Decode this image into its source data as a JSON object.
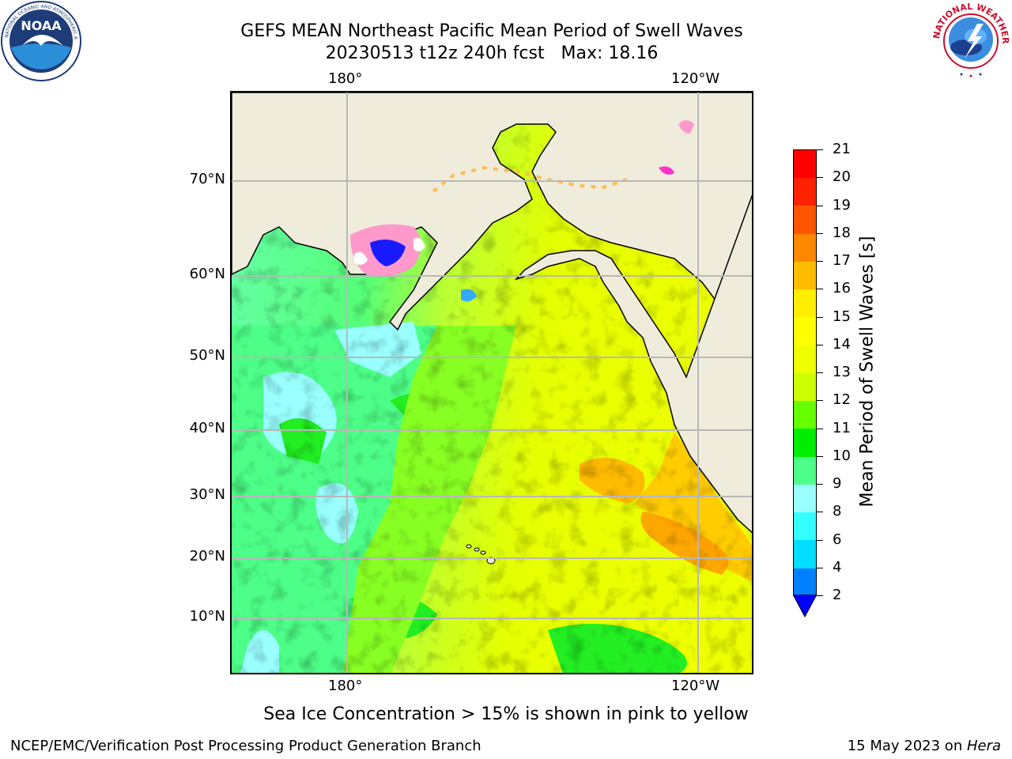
{
  "title": {
    "line1": "GEFS MEAN Northeast Pacific Mean Period of Swell Waves",
    "line2": "20230513 t12z 240h fcst   Max: 18.16"
  },
  "logos": {
    "left": {
      "icon": "noaa-logo",
      "text": "NOAA",
      "ring_text": "NATIONAL OCEANIC AND ATMOSPHERIC ADMINISTRATION · U.S. DEPARTMENT OF COMMERCE"
    },
    "right": {
      "icon": "nws-logo",
      "ring_text": "NATIONAL WEATHER SERVICE"
    }
  },
  "map": {
    "lon_labels": [
      "180°",
      "120°W"
    ],
    "lat_labels": [
      "70°N",
      "60°N",
      "50°N",
      "40°N",
      "30°N",
      "20°N",
      "10°N"
    ],
    "grid": true,
    "land_color": "#efecdc",
    "ice_colors": [
      "#ff33cc",
      "#ff99cc",
      "#ffd24d"
    ]
  },
  "colorbar": {
    "label": "Mean Period of Swell Waves [s]",
    "ticks": [
      "2",
      "4",
      "6",
      "8",
      "9",
      "10",
      "11",
      "12",
      "13",
      "14",
      "15",
      "16",
      "17",
      "18",
      "19",
      "20",
      "21"
    ],
    "colors": [
      "#0080ff",
      "#00ddff",
      "#33ffff",
      "#99ffff",
      "#4dff88",
      "#00ee00",
      "#66ff00",
      "#ccff00",
      "#eeff00",
      "#ffff00",
      "#ffee00",
      "#ffbb00",
      "#ff8800",
      "#ff5500",
      "#ff2200",
      "#ff0000"
    ],
    "extend_color": "#0000ff"
  },
  "caption": "Sea Ice Concentration > 15% is shown in pink to yellow",
  "footer": {
    "left": "NCEP/EMC/Verification Post Processing Product Generation Branch",
    "right_date": "15 May 2023 on ",
    "right_machine": "Hera"
  }
}
